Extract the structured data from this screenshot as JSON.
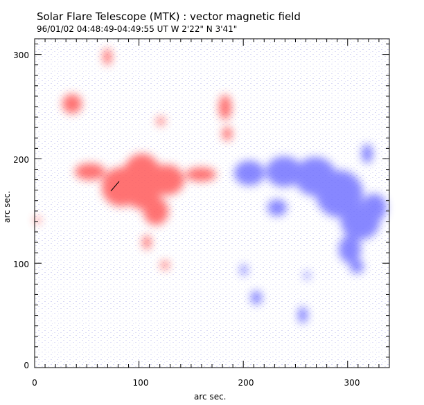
{
  "header": {
    "title": "Solar Flare Telescope (MTK) : vector magnetic field",
    "subtitle": "96/01/02  04:48:49-04:49:55 UT     W 2'22\"   N 3'41\""
  },
  "axes": {
    "xlabel": "arc sec.",
    "ylabel": "arc sec.",
    "xticks": [
      "0",
      "100",
      "200",
      "300"
    ],
    "yticks": [
      "0",
      "100",
      "200",
      "300"
    ],
    "xlim": [
      0,
      340
    ],
    "ylim": [
      0,
      315
    ]
  },
  "colors": {
    "positive_polarity": "#ff5a5a",
    "negative_polarity": "#6a6aff",
    "background_noise": "#b8b8ee",
    "frame": "#000000"
  }
}
